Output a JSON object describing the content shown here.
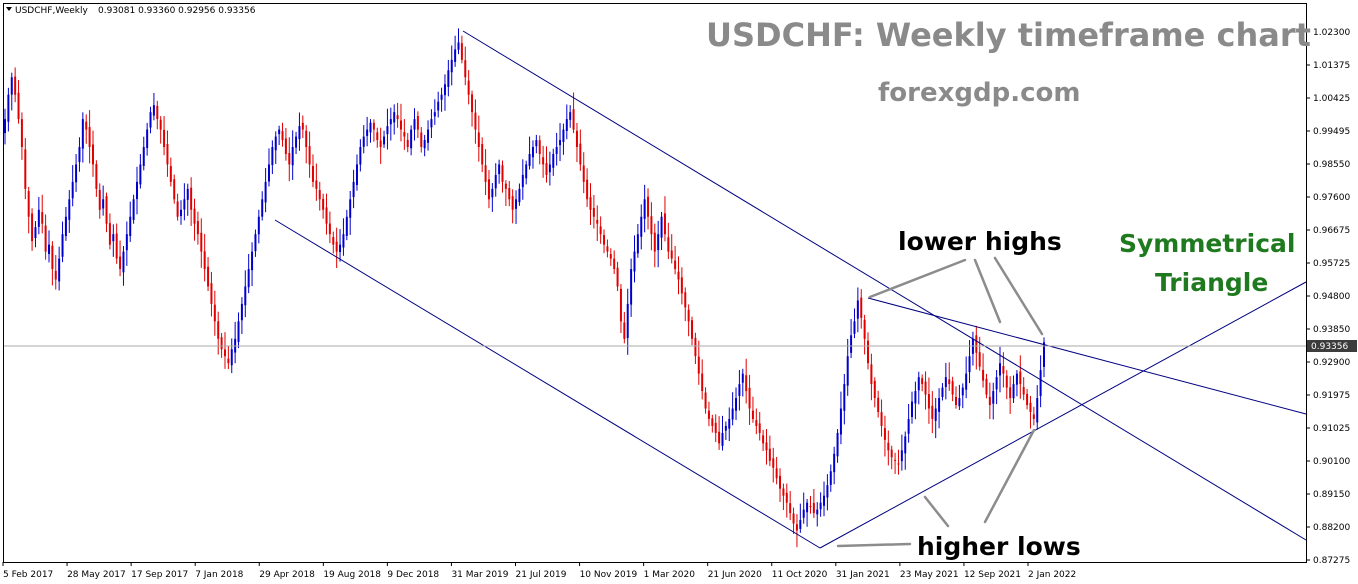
{
  "header": {
    "symbol": "USDCHF,Weekly",
    "ohlc": "0.93081 0.93360 0.92956 0.93356"
  },
  "title": "USDCHF: Weekly timeframe chart",
  "subtitle": "forexgdp.com",
  "annotations": {
    "lower_highs": "lower highs",
    "higher_lows": "higher lows",
    "pattern_line1": "Symmetrical",
    "pattern_line2": "Triangle"
  },
  "current_price": "0.93356",
  "colors": {
    "bull": "#0000cc",
    "bear": "#e00000",
    "trendline": "#000080",
    "pointer": "#8c8c8c",
    "current_price_label": "#3c3c3c"
  },
  "chart_data": {
    "type": "candlestick",
    "symbol": "USDCHF",
    "timeframe": "Weekly",
    "ylim": [
      0.8727,
      1.027
    ],
    "y_ticks": [
      "1.02300",
      "1.01375",
      "1.00425",
      "0.99495",
      "0.98550",
      "0.97600",
      "0.96675",
      "0.95725",
      "0.94800",
      "0.93850",
      "0.92900",
      "0.91975",
      "0.91025",
      "0.90100",
      "0.89150",
      "0.88200",
      "0.87275"
    ],
    "x_ticks": [
      "5 Feb 2017",
      "28 May 2017",
      "17 Sep 2017",
      "7 Jan 2018",
      "29 Apr 2018",
      "19 Aug 2018",
      "9 Dec 2018",
      "31 Mar 2019",
      "21 Jul 2019",
      "10 Nov 2019",
      "1 Mar 2020",
      "21 Jun 2020",
      "11 Oct 2020",
      "31 Jan 2021",
      "23 May 2021",
      "12 Sep 2021",
      "2 Jan 2022"
    ],
    "closes": [
      0.998,
      1.005,
      1.01,
      1.005,
      0.998,
      0.99,
      0.978,
      0.97,
      0.963,
      0.967,
      0.972,
      0.968,
      0.96,
      0.962,
      0.955,
      0.952,
      0.958,
      0.965,
      0.97,
      0.975,
      0.98,
      0.985,
      0.99,
      0.998,
      0.995,
      0.99,
      0.985,
      0.978,
      0.972,
      0.975,
      0.968,
      0.962,
      0.965,
      0.958,
      0.955,
      0.96,
      0.965,
      0.97,
      0.975,
      0.98,
      0.985,
      0.99,
      0.995,
      1.0,
      1.002,
      0.998,
      0.995,
      0.99,
      0.985,
      0.98,
      0.975,
      0.97,
      0.972,
      0.975,
      0.978,
      0.972,
      0.968,
      0.965,
      0.96,
      0.955,
      0.95,
      0.945,
      0.94,
      0.935,
      0.932,
      0.93,
      0.928,
      0.932,
      0.935,
      0.94,
      0.945,
      0.95,
      0.955,
      0.96,
      0.965,
      0.97,
      0.975,
      0.98,
      0.985,
      0.99,
      0.993,
      0.995,
      0.992,
      0.988,
      0.985,
      0.99,
      0.993,
      0.996,
      0.995,
      0.99,
      0.985,
      0.98,
      0.978,
      0.975,
      0.972,
      0.968,
      0.965,
      0.962,
      0.96,
      0.962,
      0.965,
      0.97,
      0.975,
      0.98,
      0.985,
      0.99,
      0.993,
      0.995,
      0.997,
      0.995,
      0.992,
      0.99,
      0.993,
      0.996,
      0.998,
      1.0,
      0.998,
      0.995,
      0.993,
      0.99,
      0.995,
      0.998,
      0.995,
      0.99,
      0.992,
      0.995,
      0.998,
      1.0,
      1.003,
      1.005,
      1.008,
      1.012,
      1.015,
      1.018,
      1.02,
      1.015,
      1.01,
      1.005,
      1.0,
      0.995,
      0.99,
      0.985,
      0.98,
      0.975,
      0.978,
      0.982,
      0.985,
      0.98,
      0.978,
      0.975,
      0.972,
      0.975,
      0.978,
      0.982,
      0.985,
      0.988,
      0.99,
      0.992,
      0.988,
      0.985,
      0.982,
      0.985,
      0.988,
      0.99,
      0.992,
      0.995,
      0.998,
      1.0,
      0.995,
      0.99,
      0.985,
      0.98,
      0.975,
      0.972,
      0.97,
      0.968,
      0.965,
      0.962,
      0.96,
      0.958,
      0.955,
      0.95,
      0.94,
      0.935,
      0.945,
      0.955,
      0.96,
      0.965,
      0.97,
      0.975,
      0.97,
      0.965,
      0.96,
      0.965,
      0.97,
      0.965,
      0.96,
      0.958,
      0.955,
      0.952,
      0.948,
      0.944,
      0.94,
      0.935,
      0.93,
      0.925,
      0.92,
      0.915,
      0.912,
      0.91,
      0.908,
      0.905,
      0.908,
      0.91,
      0.912,
      0.915,
      0.918,
      0.922,
      0.925,
      0.92,
      0.915,
      0.912,
      0.91,
      0.908,
      0.905,
      0.903,
      0.9,
      0.898,
      0.895,
      0.892,
      0.89,
      0.888,
      0.885,
      0.882,
      0.88,
      0.883,
      0.886,
      0.888,
      0.887,
      0.885,
      0.886,
      0.888,
      0.89,
      0.893,
      0.897,
      0.902,
      0.908,
      0.915,
      0.922,
      0.93,
      0.936,
      0.94,
      0.946,
      0.941,
      0.935,
      0.928,
      0.922,
      0.918,
      0.914,
      0.91,
      0.906,
      0.903,
      0.901,
      0.9,
      0.899,
      0.903,
      0.907,
      0.912,
      0.917,
      0.92,
      0.924,
      0.922,
      0.919,
      0.915,
      0.912,
      0.915,
      0.918,
      0.921,
      0.924,
      0.922,
      0.919,
      0.916,
      0.918,
      0.921,
      0.925,
      0.93,
      0.935,
      0.931,
      0.927,
      0.923,
      0.919,
      0.916,
      0.92,
      0.924,
      0.928,
      0.925,
      0.921,
      0.918,
      0.922,
      0.925,
      0.922,
      0.919,
      0.916,
      0.914,
      0.912,
      0.918,
      0.926,
      0.934
    ]
  }
}
